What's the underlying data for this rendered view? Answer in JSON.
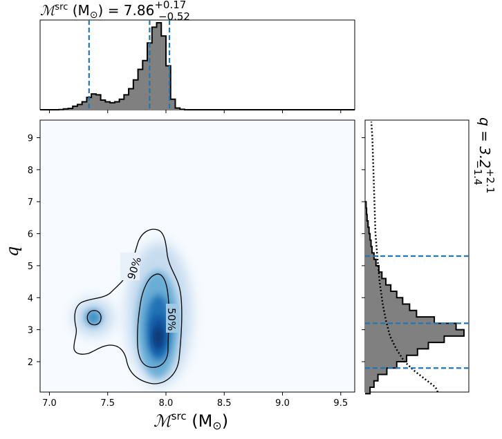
{
  "chart_data": {
    "type": "corner",
    "title_top": {
      "symbol": "ℳ",
      "sup": "src",
      "unit": " (M",
      "sun": "⊙",
      "eq": ") = 7.86",
      "plus": "+0.17",
      "minus": "−0.52"
    },
    "title_right": {
      "text": "q = 3.2",
      "plus": "+2.1",
      "minus": "−1.4"
    },
    "xlabel": {
      "symbol": "ℳ",
      "sup": "src",
      "unit": " (M",
      "sun": "⊙",
      "close": ")"
    },
    "ylabel": "q",
    "xlim": [
      6.92,
      9.62
    ],
    "ylim": [
      1.05,
      9.55
    ],
    "xticks": [
      7.0,
      7.5,
      8.0,
      8.5,
      9.0,
      9.5
    ],
    "xtick_labels": [
      "7.0",
      "7.5",
      "8.0",
      "8.5",
      "9.0",
      "9.5"
    ],
    "yticks": [
      2,
      3,
      4,
      5,
      6,
      7,
      8,
      9
    ],
    "ytick_labels": [
      "2",
      "3",
      "4",
      "5",
      "6",
      "7",
      "8",
      "9"
    ],
    "contour_labels": [
      "90%",
      "50%"
    ],
    "mchirp_quantiles": [
      7.34,
      7.86,
      8.03
    ],
    "q_quantiles": [
      1.8,
      3.2,
      5.3
    ],
    "mchirp_hist": {
      "bin_edges": [
        6.92,
        6.96,
        7.0,
        7.04,
        7.08,
        7.12,
        7.16,
        7.2,
        7.24,
        7.28,
        7.32,
        7.36,
        7.4,
        7.44,
        7.48,
        7.52,
        7.56,
        7.6,
        7.64,
        7.68,
        7.72,
        7.76,
        7.8,
        7.84,
        7.88,
        7.92,
        7.96,
        8.0,
        8.04,
        8.08,
        8.12,
        8.16
      ],
      "counts": [
        0,
        0,
        0,
        0,
        0.2,
        1,
        1.5,
        4,
        6,
        9,
        14,
        18,
        17,
        11,
        9,
        8,
        9,
        12,
        17,
        24,
        34,
        46,
        56,
        76,
        94,
        99,
        84,
        50,
        12,
        2,
        0.5
      ]
    },
    "q_hist": {
      "bin_edges": [
        1.0,
        1.2,
        1.4,
        1.6,
        1.8,
        2.0,
        2.2,
        2.4,
        2.6,
        2.8,
        3.0,
        3.2,
        3.4,
        3.6,
        3.8,
        4.0,
        4.2,
        4.4,
        4.6,
        4.8,
        5.0,
        5.2,
        5.4,
        5.6,
        5.8,
        6.0,
        6.2,
        6.4,
        6.6,
        6.8,
        7.0
      ],
      "counts": [
        5,
        9,
        13,
        22,
        32,
        42,
        53,
        64,
        80,
        100,
        92,
        70,
        52,
        45,
        38,
        32,
        26,
        21,
        17,
        14,
        11,
        9,
        7,
        6,
        5,
        4,
        3,
        2,
        1.5,
        1
      ]
    },
    "q_prior": {
      "q": [
        1.0,
        1.2,
        1.45,
        1.7,
        2.0,
        2.4,
        2.8,
        3.3,
        3.8,
        4.5,
        5.2,
        6.0,
        7.0,
        8.0,
        9.0,
        9.5
      ],
      "density": [
        70,
        68,
        58,
        48,
        38,
        30,
        24,
        20,
        17,
        14,
        12,
        10,
        9,
        8,
        7,
        6
      ]
    }
  }
}
